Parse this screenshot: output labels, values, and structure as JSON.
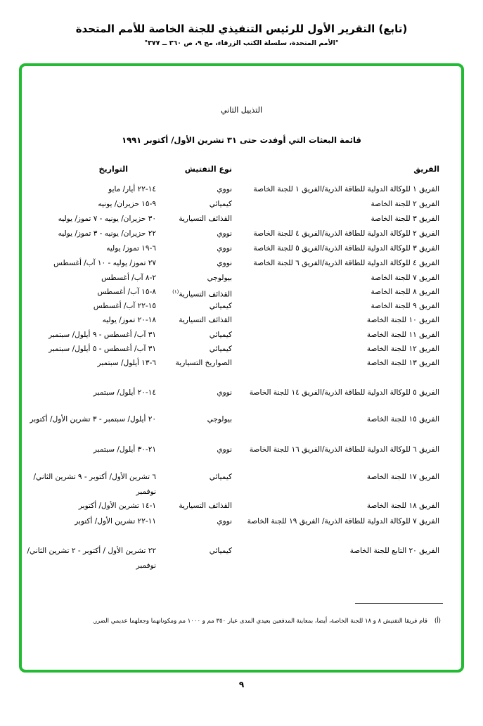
{
  "header": {
    "title": "(تابع) التقرير الأول للرئيس التنفيذي للجنة الخاصة للأمم المتحدة",
    "subtitle": "\"الأمم المتحدة، سلسلة الكتب الزرقاء، مج ٩، ص ٣٦٠ ــ ٣٧٧\""
  },
  "frame_color": "#22bb33",
  "annex_title": "التذييل الثاني",
  "list_title": "قائمة البعثات التي أوفدت حتى ٣١ تشرين الأول/ أكتوبر ١٩٩١",
  "columns": {
    "team": "الفريق",
    "type": "نوع التفتيش",
    "dates": "التواريخ"
  },
  "rows": [
    {
      "team": "الفريق ١ للوكالة الدولية للطاقة الذرية/الفريق ١ للجنة الخاصة",
      "type": "نووي",
      "dates": "١٤-٢٢ أيار/ مايو"
    },
    {
      "team": "الفريق ٢ للجنة الخاصة",
      "type": "كيميائي",
      "dates": "٩-١٥ حزيران/ يونيه"
    },
    {
      "team": "الفريق ٣ للجنة الخاصة",
      "type": "القذائف التسيارية",
      "dates": "٣٠ حزيران/ يونيه - ٧ تموز/ يوليه"
    },
    {
      "team": "الفريق ٢ للوكالة الدولية للطاقة الذرية/الفريق ٤ للجنة الخاصة",
      "type": "نووي",
      "dates": "٢٢ حزيران/ يونيه - ٣ تموز/ يوليه"
    },
    {
      "team": "الفريق ٣ للوكالة الدولية للطاقة الذرية/الفريق ٥ للجنة الخاصة",
      "type": "نووي",
      "dates": "٦-١٩ تموز/ يوليه"
    },
    {
      "team": "الفريق ٤ للوكالة الدولية للطاقة الذرية/الفريق ٦ للجنة الخاصة",
      "type": "نووي",
      "dates": "٢٧ تموز/ يوليه - ١٠ آب/ أغسطس"
    },
    {
      "team": "الفريق ٧ للجنة الخاصة",
      "type": "بيولوجي",
      "dates": "٢-٨ آب/ أغسطس"
    },
    {
      "team": "الفريق ٨ للجنة الخاصة",
      "type": "القذائف التسيارية",
      "type_note": "(١)",
      "dates": "٨-١٥ آب/ أغسطس"
    },
    {
      "team": "الفريق ٩ للجنة الخاصة",
      "type": "كيميائي",
      "dates": "١٥-٢٢ آب/ أغسطس"
    },
    {
      "team": "الفريق ١٠ للجنة الخاصة",
      "type": "القذائف التسيارية",
      "dates": "١٨-٢٠ تموز/ يوليه"
    },
    {
      "team": "الفريق ١١ للجنة الخاصة",
      "type": "كيميائي",
      "dates": "٣١ آب/ أغسطس - ٩ أيلول/ سبتمبر"
    },
    {
      "team": "الفريق ١٢ للجنة الخاصة",
      "type": "كيميائي",
      "dates": "٣١ آب/ أغسطس - ٥ أيلول/ سبتمبر"
    },
    {
      "team": "الفريق ١٣ للجنة الخاصة",
      "type": "الصواريخ التسيارية",
      "dates": "٦-١٣ أيلول/ سبتمبر"
    },
    {
      "team": "الفريق ٥ للوكالة الدولية للطاقة الذرية/الفريق ١٤ للجنة الخاصة",
      "type": "نووي",
      "dates": "١٤-٢٠ أيلول/ سبتمبر"
    },
    {
      "team": "الفريق ١٥ للجنة الخاصة",
      "type": "بيولوجي",
      "dates": "٢٠ أيلول/ سبتمبر - ٣ تشرين الأول/ أكتوبر"
    },
    {
      "team": "الفريق ٦ للوكالة الدولية للطاقة الذرية/الفريق ١٦ للجنة الخاصة",
      "type": "نووي",
      "dates": "٢١-٣٠ أيلول/ سبتمبر"
    },
    {
      "team": "الفريق ١٧ للجنة الخاصة",
      "type": "كيميائي",
      "dates": "٦ تشرين الأول/ أكتوبر - ٩ تشرين الثاني/ نوفمبر"
    },
    {
      "team": "الفريق ١٨ للجنة الخاصة",
      "type": "القذائف التسيارية",
      "dates": "١-١٤ تشرين الأول/ أكتوبر"
    },
    {
      "team": "الفريق ٧ للوكالة الدولية للطاقة الذرية/ الفريق ١٩ للجنة الخاصة",
      "type": "نووي",
      "dates": "١١-٢٢ تشرين الأول/ أكتوبر"
    },
    {
      "team": "الفريق ٢٠ التابع للجنة الخاصة",
      "type": "كيميائي",
      "dates": "٢٢ تشرين الأول / أكتوبر - ٢ تشرين الثاني/ نوفمبر"
    }
  ],
  "footnote": {
    "mark": "(أ)",
    "text": "قام فريقا التفتيش ٨ و ١٨ للجنة الخاصة، أيضا، بمعاينة المدفعين بعيدي المدى عيار ٣٥٠ مم و ١٠٠٠ مم ومكوناتهما وجعلهما عديمي الضرر."
  },
  "page_number": "٩"
}
